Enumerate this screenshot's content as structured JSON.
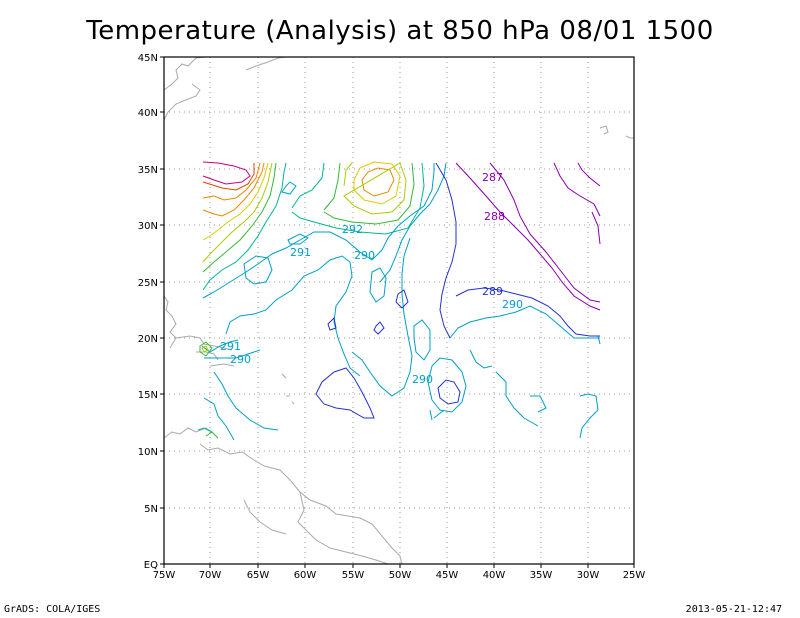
{
  "title": "Temperature (Analysis) at 850 hPa 08/01 1500",
  "footer": {
    "credit": "GrADS: COLA/IGES",
    "timestamp": "2013-05-21-12:47"
  },
  "axes": {
    "lon_labels": [
      "75W",
      "70W",
      "65W",
      "60W",
      "55W",
      "50W",
      "45W",
      "40W",
      "35W",
      "30W",
      "25W"
    ],
    "lat_labels": [
      "EQ",
      "5N",
      "10N",
      "15N",
      "20N",
      "25N",
      "30N",
      "35N",
      "40N",
      "45N"
    ]
  },
  "contour_labels": [
    {
      "text": "287",
      "color": "#8800aa"
    },
    {
      "text": "288",
      "color": "#8800aa"
    },
    {
      "text": "289",
      "color": "#2233cc"
    },
    {
      "text": "290",
      "color": "#00a0c8"
    },
    {
      "text": "290",
      "color": "#00a0c8"
    },
    {
      "text": "290",
      "color": "#00a0c8"
    },
    {
      "text": "290",
      "color": "#00a0c8"
    },
    {
      "text": "291",
      "color": "#00a0c8"
    },
    {
      "text": "291",
      "color": "#00a0c8"
    },
    {
      "text": "292",
      "color": "#00a0c8"
    }
  ],
  "colors": {
    "cold_purple": "#9900bb",
    "blue": "#2233cc",
    "cyan": "#00a0c8",
    "teal": "#00b890",
    "green": "#33bb33",
    "yellow_green": "#aacc00",
    "yellow": "#ddcc00",
    "orange": "#ee8800",
    "red_purple": "#cc0077",
    "coast": "#aaaaaa",
    "grid": "#999999"
  }
}
